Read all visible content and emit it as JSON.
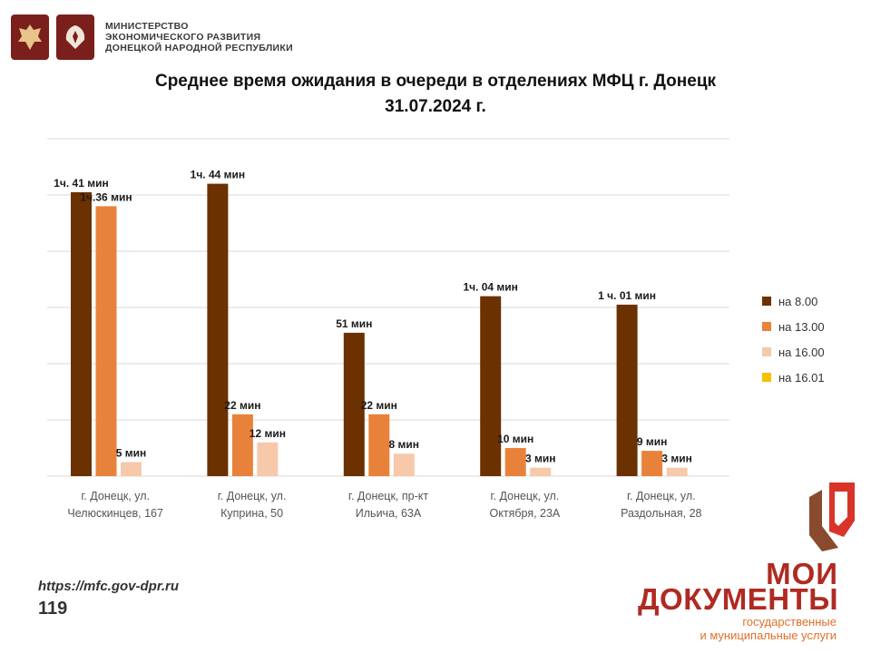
{
  "header": {
    "ministry_line1": "МИНИСТЕРСТВО",
    "ministry_line2": "ЭКОНОМИЧЕСКОГО РАЗВИТИЯ",
    "ministry_line3": "ДОНЕЦКОЙ НАРОДНОЙ РЕСПУБЛИКИ"
  },
  "chart_data": {
    "type": "bar",
    "title": "Среднее время ожидания в очереди в отделениях МФЦ г. Донецк",
    "subtitle": "31.07.2024 г.",
    "categories": [
      [
        "г. Донецк, ул.",
        "Челюскинцев, 167"
      ],
      [
        "г. Донецк, ул.",
        "Куприна, 50"
      ],
      [
        "г. Донецк, пр-кт",
        "Ильича, 63А"
      ],
      [
        "г. Донецк, ул.",
        "Октября, 23А"
      ],
      [
        "г. Донецк, ул.",
        "Раздольная, 28"
      ]
    ],
    "series": [
      {
        "name": "на 8.00",
        "color": "#6b3100",
        "values": [
          101,
          104,
          51,
          64,
          61
        ],
        "labels": [
          "1ч. 41 мин",
          "1ч. 44 мин",
          "51 мин",
          "1ч. 04 мин",
          "1 ч. 01 мин"
        ]
      },
      {
        "name": "на 13.00",
        "color": "#e8823a",
        "values": [
          96,
          22,
          22,
          10,
          9
        ],
        "labels": [
          "1ч.36 мин",
          "22 мин",
          "22 мин",
          "10 мин",
          "9 мин"
        ]
      },
      {
        "name": "на 16.00",
        "color": "#f6c9aa",
        "values": [
          5,
          12,
          8,
          3,
          3
        ],
        "labels": [
          "5 мин",
          "12 мин",
          "8 мин",
          "3 мин",
          "3 мин"
        ]
      },
      {
        "name": "на 16.01",
        "color": "#f5c000",
        "values": [
          0,
          0,
          0,
          0,
          0
        ],
        "labels": [
          "",
          "",
          "",
          "",
          ""
        ]
      }
    ],
    "ylim": [
      0,
      120
    ],
    "grid": true,
    "legend_position": "right"
  },
  "footer": {
    "url": "https://mfc.gov-dpr.ru",
    "page": "119"
  },
  "brand": {
    "line1": "МОИ",
    "line2": "ДОКУМЕНТЫ",
    "line3a": "государственные",
    "line3b": "и муниципальные услуги"
  }
}
